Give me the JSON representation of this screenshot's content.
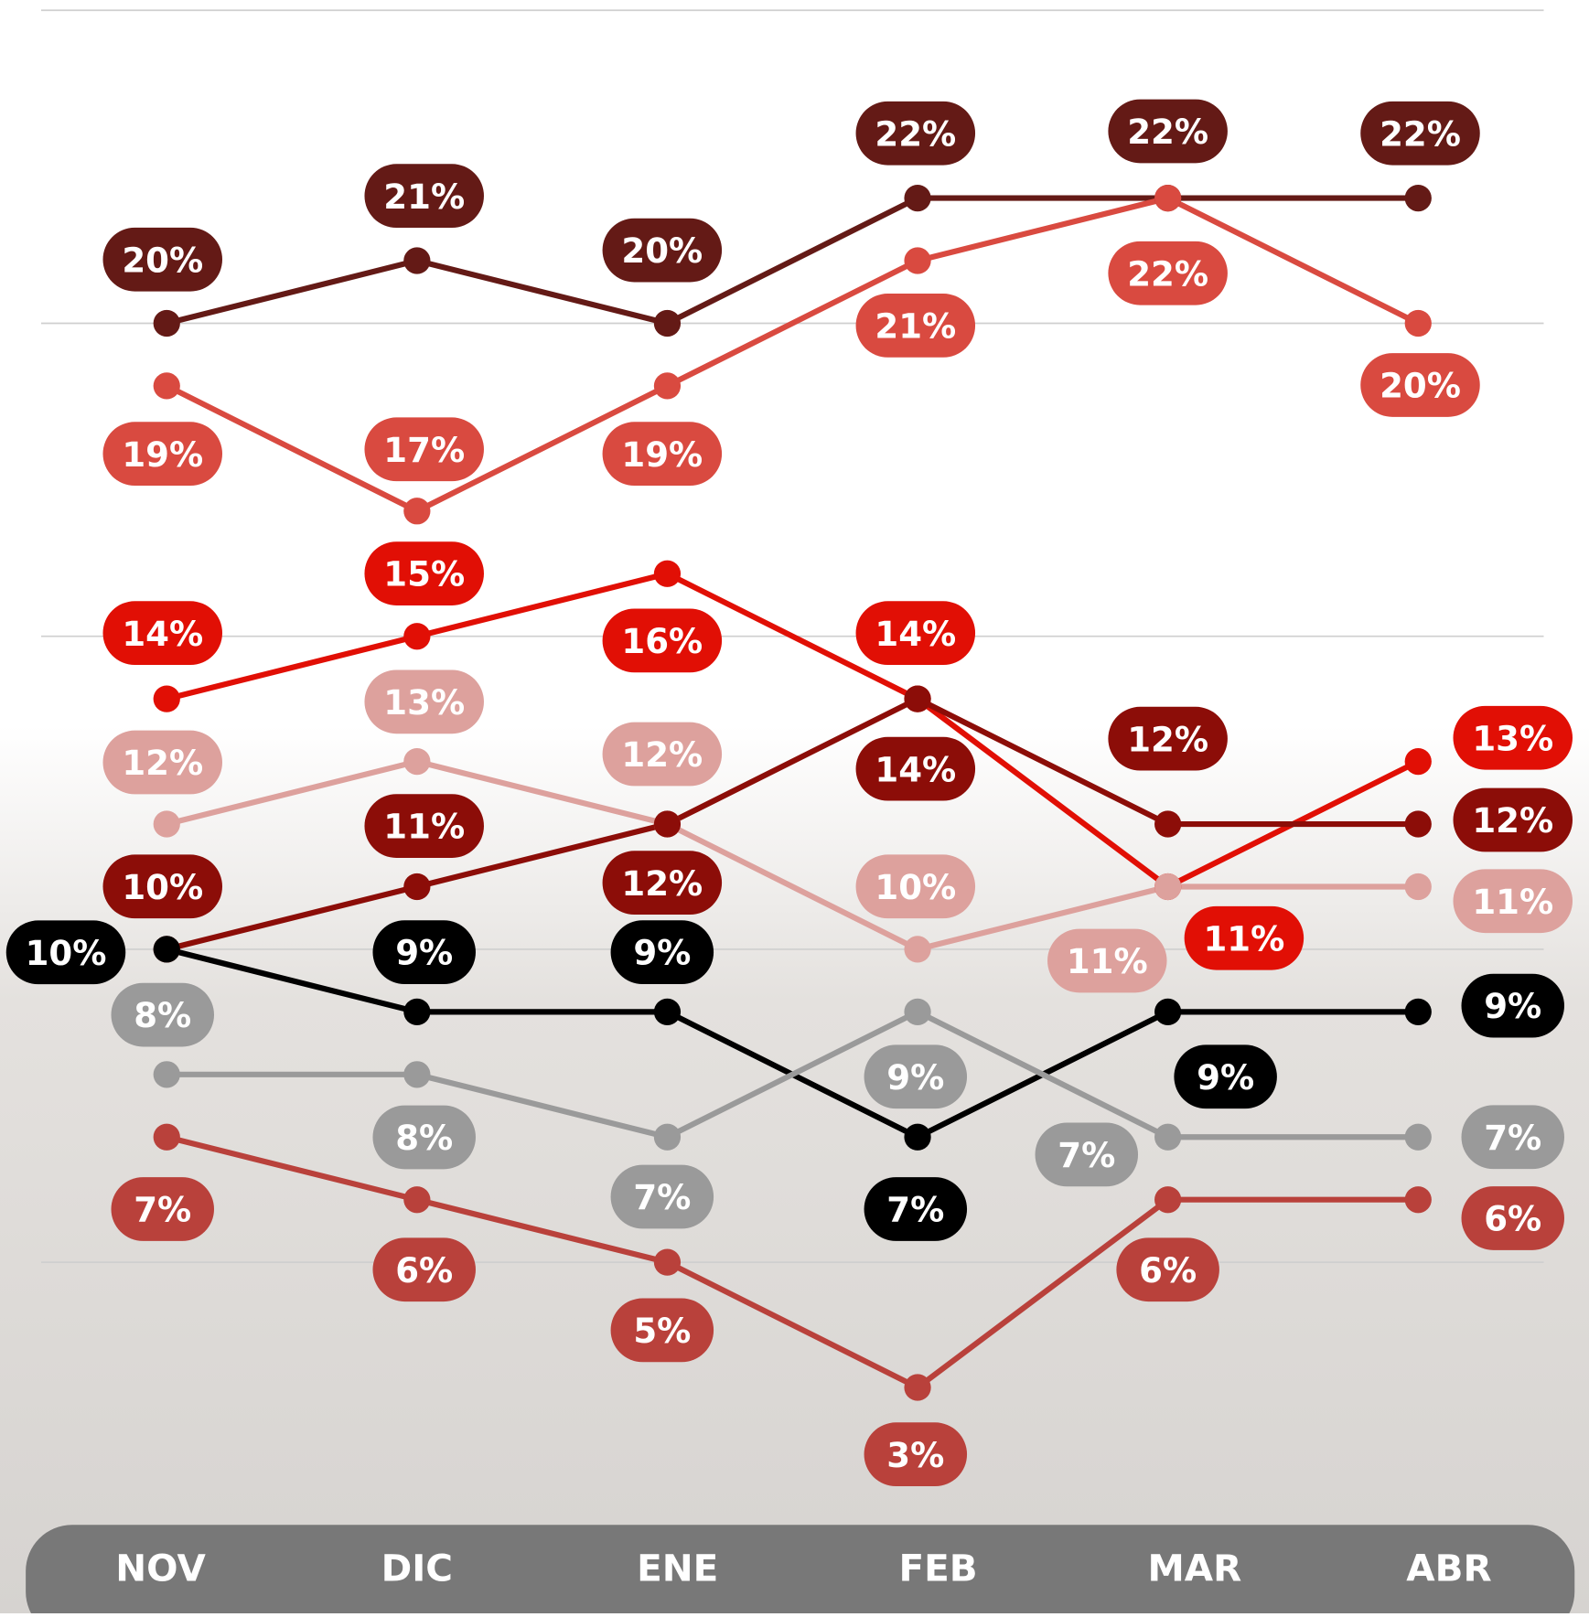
{
  "chart_data": {
    "type": "line",
    "categories": [
      "NOV",
      "DIC",
      "ENE",
      "FEB",
      "MAR",
      "ABR"
    ],
    "ylim": [
      0,
      25
    ],
    "yticks": [
      0,
      5,
      10,
      15,
      20,
      25
    ],
    "grid": true,
    "series": [
      {
        "color": "#641a16",
        "values": [
          20,
          21,
          20,
          22,
          22,
          22
        ],
        "value_labels": [
          "20%",
          "21%",
          "20%",
          "22%",
          "22%",
          "22%"
        ]
      },
      {
        "color": "#d94a40",
        "values": [
          19,
          17,
          19,
          21,
          22,
          20
        ],
        "value_labels": [
          "19%",
          "17%",
          "19%",
          "21%",
          "22%",
          "20%"
        ]
      },
      {
        "color": "#e10f05",
        "values": [
          14,
          15,
          16,
          14,
          11,
          13
        ],
        "value_labels": [
          "14%",
          "15%",
          "16%",
          "14%",
          "11%",
          "13%"
        ]
      },
      {
        "color": "#dda19d",
        "values": [
          12,
          13,
          12,
          10,
          11,
          11
        ],
        "value_labels": [
          "12%",
          "13%",
          "12%",
          "10%",
          "11%",
          "11%"
        ]
      },
      {
        "color": "#8c0d08",
        "values": [
          10,
          11,
          12,
          14,
          12,
          12
        ],
        "value_labels": [
          "10%",
          "11%",
          "12%",
          "14%",
          "12%",
          "12%"
        ]
      },
      {
        "color": "#000000",
        "values": [
          10,
          9,
          9,
          7,
          9,
          9
        ],
        "value_labels": [
          "10%",
          "9%",
          "9%",
          "7%",
          "9%",
          "9%"
        ]
      },
      {
        "color": "#9a9a9a",
        "values": [
          8,
          8,
          7,
          9,
          7,
          7
        ],
        "value_labels": [
          "8%",
          "8%",
          "7%",
          "9%",
          "7%",
          "7%"
        ]
      },
      {
        "color": "#b9413b",
        "values": [
          7,
          6,
          5,
          3,
          6,
          6
        ],
        "value_labels": [
          "7%",
          "6%",
          "5%",
          "3%",
          "6%",
          "6%"
        ]
      }
    ]
  }
}
